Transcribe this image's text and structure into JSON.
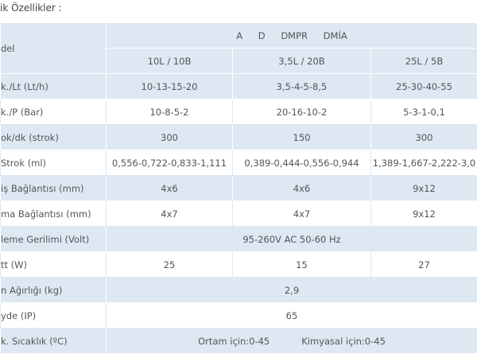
{
  "title": "ik Özellikler :",
  "table": {
    "header": {
      "model": "del",
      "group": "A D DMPR DMİA",
      "columns": [
        "10L / 10B",
        "3,5L / 20B",
        "25L / 5B"
      ]
    },
    "rows": [
      {
        "label": "k./Lt (Lt/h)",
        "cells": [
          "10-13-15-20",
          "3,5-4-5-8,5",
          "25-30-40-55"
        ]
      },
      {
        "label": "k./P (Bar)",
        "cells": [
          "10-8-5-2",
          "20-16-10-2",
          "5-3-1-0,1"
        ]
      },
      {
        "label": "ok/dk (strok)",
        "cells": [
          "300",
          "150",
          "300"
        ]
      },
      {
        "label": "Strok (ml)",
        "cells": [
          "0,556-0,722-0,833-1,111",
          "0,389-0,444-0,556-0,944",
          "1,389-1,667-2,222-3,0"
        ]
      },
      {
        "label": "iş Bağlantısı (mm)",
        "cells": [
          "4x6",
          "4x6",
          "9x12"
        ]
      },
      {
        "label": "ma Bağlantısı (mm)",
        "cells": [
          "4x7",
          "4x7",
          "9x12"
        ]
      },
      {
        "label": "leme Gerilimi (Volt)",
        "cells": [
          "95-260V AC 50-60 Hz"
        ]
      },
      {
        "label": "tt (W)",
        "cells": [
          "25",
          "15",
          "27"
        ]
      },
      {
        "label": "n Ağırlığı (kg)",
        "cells": [
          "2,9"
        ]
      },
      {
        "label": "yde (IP)",
        "cells": [
          "65"
        ]
      },
      {
        "label": "k. Sıcaklık (ºC)",
        "cells": [
          "Ortam için:0-45",
          "Kimyasal için:0-45"
        ],
        "joined": true
      }
    ]
  }
}
